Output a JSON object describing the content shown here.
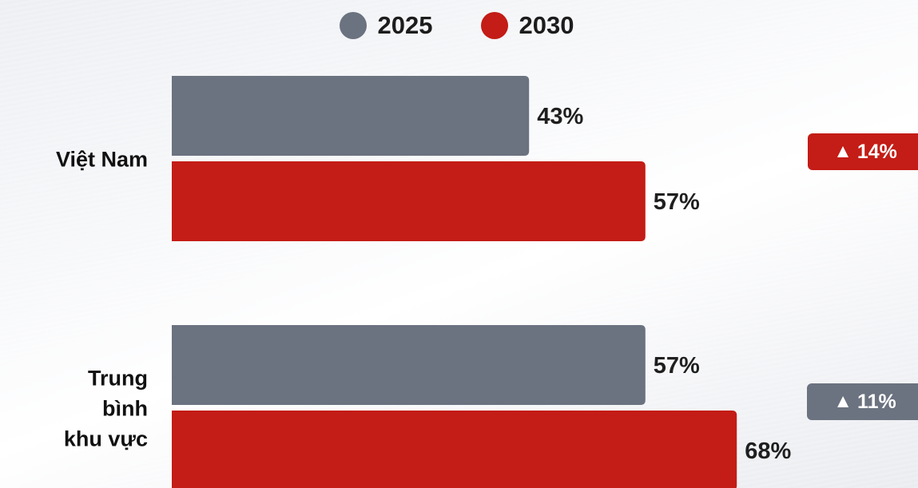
{
  "legend": [
    {
      "label": "2025",
      "color": "#6b7280"
    },
    {
      "label": "2030",
      "color": "#c41c16"
    }
  ],
  "chart_data": {
    "type": "bar",
    "orientation": "horizontal",
    "categories": [
      {
        "lines": [
          "Việt Nam"
        ]
      },
      {
        "lines": [
          "Trung",
          "bình",
          "khu vực"
        ]
      }
    ],
    "series": [
      {
        "name": "2025",
        "color": "#6b7280",
        "values": [
          43,
          57
        ],
        "labels": [
          "43%",
          "57%"
        ]
      },
      {
        "name": "2030",
        "color": "#c41c16",
        "values": [
          57,
          68
        ],
        "labels": [
          "57%",
          "68%"
        ]
      }
    ],
    "unit": "%",
    "changes": [
      {
        "label": "14%",
        "icon": "triangle-up-icon",
        "color": "#c41c16"
      },
      {
        "label": "11%",
        "icon": "triangle-up-icon",
        "color": "#6b7280"
      }
    ],
    "grid": false,
    "legend_position": "top-center"
  }
}
